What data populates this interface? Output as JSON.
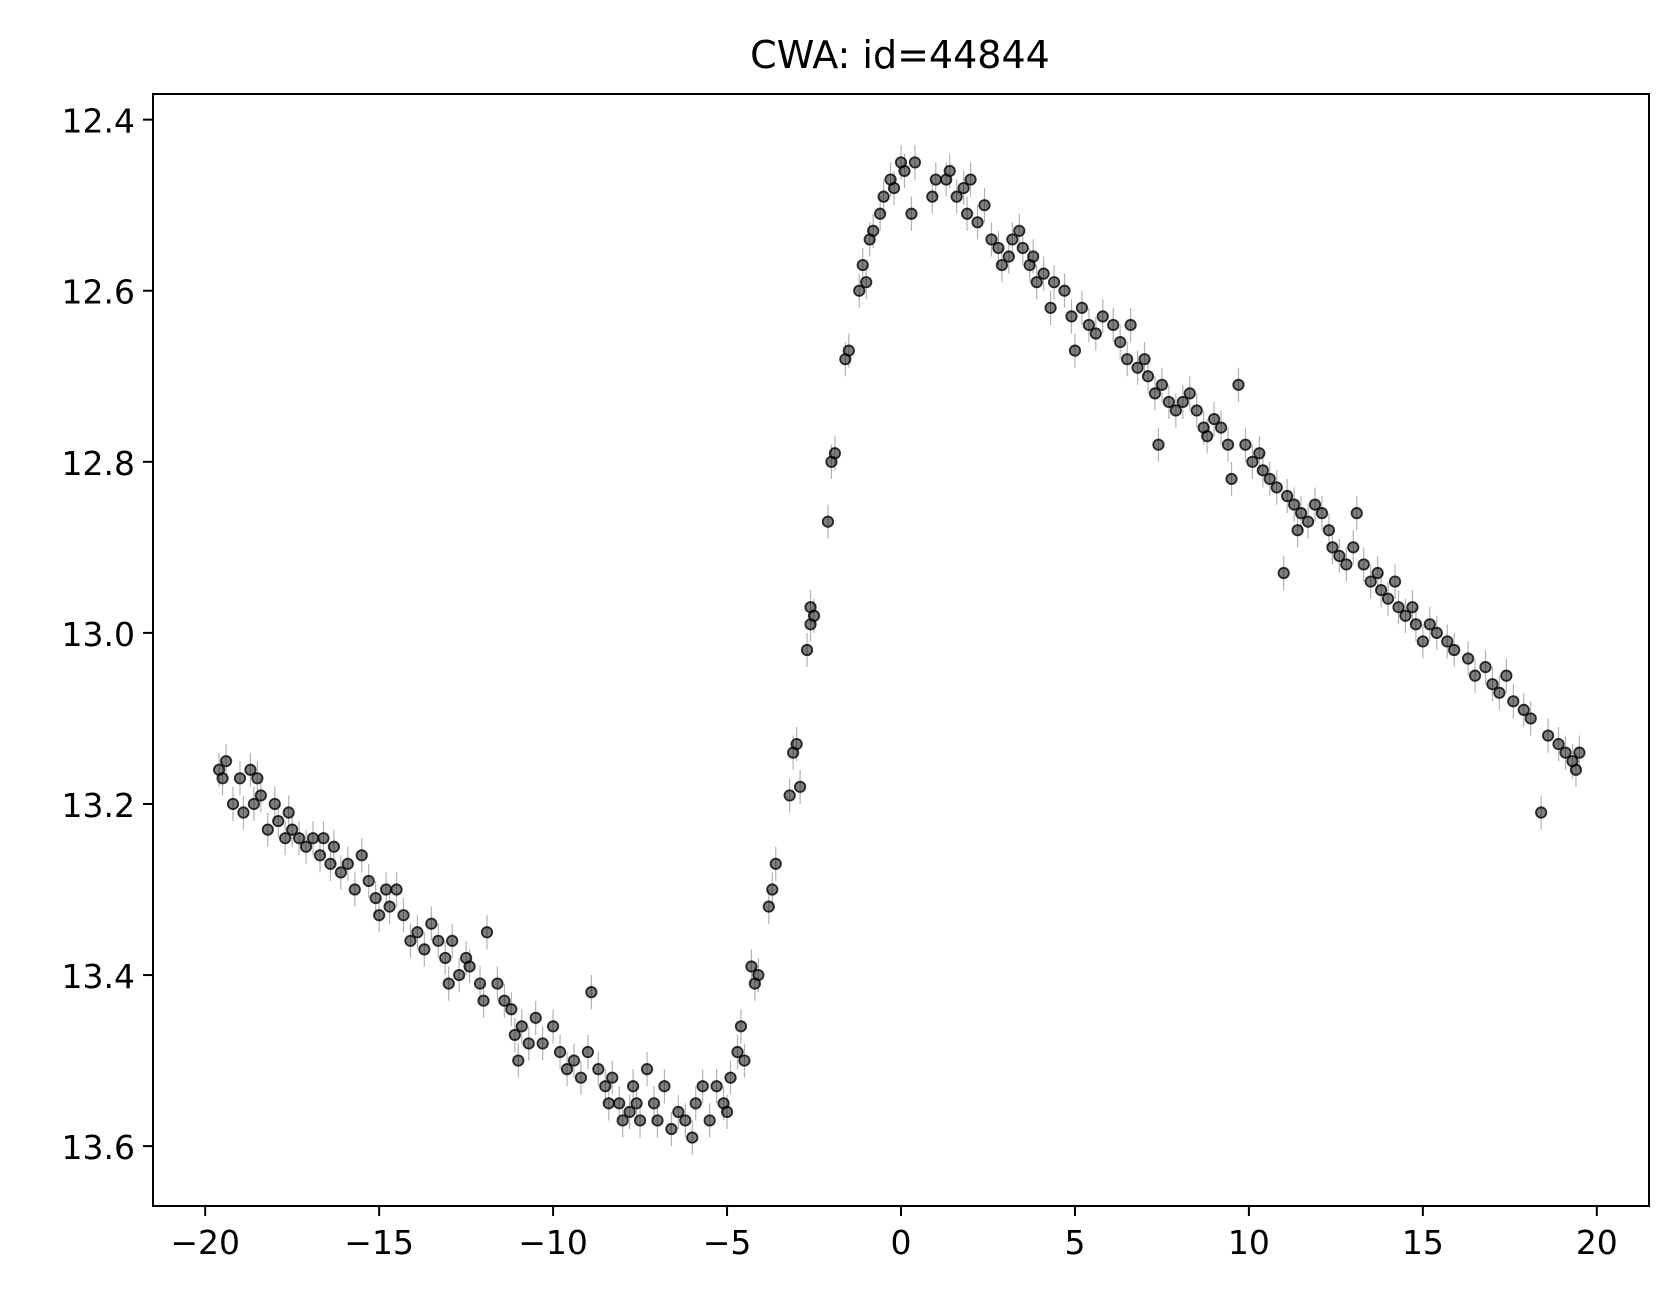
{
  "chart_data": {
    "type": "scatter",
    "title": "CWA: id=44844",
    "xlabel": "",
    "ylabel": "",
    "xlim": [
      -21.5,
      21.5
    ],
    "ylim": [
      13.67,
      12.37
    ],
    "y_inverted": true,
    "grid": false,
    "legend": "none",
    "x_ticks": [
      {
        "value": -20,
        "label": "−20"
      },
      {
        "value": -15,
        "label": "−15"
      },
      {
        "value": -10,
        "label": "−10"
      },
      {
        "value": -5,
        "label": "−5"
      },
      {
        "value": 0,
        "label": "0"
      },
      {
        "value": 5,
        "label": "5"
      },
      {
        "value": 10,
        "label": "10"
      },
      {
        "value": 15,
        "label": "15"
      },
      {
        "value": 20,
        "label": "20"
      }
    ],
    "y_ticks": [
      {
        "value": 12.4,
        "label": "12.4"
      },
      {
        "value": 12.6,
        "label": "12.6"
      },
      {
        "value": 12.8,
        "label": "12.8"
      },
      {
        "value": 13.0,
        "label": "13.0"
      },
      {
        "value": 13.2,
        "label": "13.2"
      },
      {
        "value": 13.4,
        "label": "13.4"
      },
      {
        "value": 13.6,
        "label": "13.6"
      }
    ],
    "marker_color": "#000000",
    "marker_alpha": 0.5,
    "error_bar_color": "#808080",
    "error": 0.02,
    "points": [
      [
        -19.6,
        13.16
      ],
      [
        -19.5,
        13.17
      ],
      [
        -19.4,
        13.15
      ],
      [
        -19.2,
        13.2
      ],
      [
        -19.0,
        13.17
      ],
      [
        -18.9,
        13.21
      ],
      [
        -18.7,
        13.16
      ],
      [
        -18.6,
        13.2
      ],
      [
        -18.5,
        13.17
      ],
      [
        -18.4,
        13.19
      ],
      [
        -18.2,
        13.23
      ],
      [
        -18.0,
        13.2
      ],
      [
        -17.9,
        13.22
      ],
      [
        -17.7,
        13.24
      ],
      [
        -17.6,
        13.21
      ],
      [
        -17.5,
        13.23
      ],
      [
        -17.3,
        13.24
      ],
      [
        -17.1,
        13.25
      ],
      [
        -16.9,
        13.24
      ],
      [
        -16.7,
        13.26
      ],
      [
        -16.6,
        13.24
      ],
      [
        -16.4,
        13.27
      ],
      [
        -16.3,
        13.25
      ],
      [
        -16.1,
        13.28
      ],
      [
        -15.9,
        13.27
      ],
      [
        -15.7,
        13.3
      ],
      [
        -15.5,
        13.26
      ],
      [
        -15.3,
        13.29
      ],
      [
        -15.1,
        13.31
      ],
      [
        -15.0,
        13.33
      ],
      [
        -14.8,
        13.3
      ],
      [
        -14.7,
        13.32
      ],
      [
        -14.5,
        13.3
      ],
      [
        -14.3,
        13.33
      ],
      [
        -14.1,
        13.36
      ],
      [
        -13.9,
        13.35
      ],
      [
        -13.7,
        13.37
      ],
      [
        -13.5,
        13.34
      ],
      [
        -13.3,
        13.36
      ],
      [
        -13.1,
        13.38
      ],
      [
        -13.0,
        13.41
      ],
      [
        -12.9,
        13.36
      ],
      [
        -12.7,
        13.4
      ],
      [
        -12.5,
        13.38
      ],
      [
        -12.4,
        13.39
      ],
      [
        -12.1,
        13.41
      ],
      [
        -12.0,
        13.43
      ],
      [
        -11.9,
        13.35
      ],
      [
        -11.6,
        13.41
      ],
      [
        -11.4,
        13.43
      ],
      [
        -11.2,
        13.44
      ],
      [
        -11.1,
        13.47
      ],
      [
        -11.0,
        13.5
      ],
      [
        -10.9,
        13.46
      ],
      [
        -10.7,
        13.48
      ],
      [
        -10.5,
        13.45
      ],
      [
        -10.3,
        13.48
      ],
      [
        -10.0,
        13.46
      ],
      [
        -9.8,
        13.49
      ],
      [
        -9.6,
        13.51
      ],
      [
        -9.4,
        13.5
      ],
      [
        -9.2,
        13.52
      ],
      [
        -9.0,
        13.49
      ],
      [
        -8.9,
        13.42
      ],
      [
        -8.7,
        13.51
      ],
      [
        -8.5,
        13.53
      ],
      [
        -8.4,
        13.55
      ],
      [
        -8.3,
        13.52
      ],
      [
        -8.1,
        13.55
      ],
      [
        -8.0,
        13.57
      ],
      [
        -7.8,
        13.56
      ],
      [
        -7.7,
        13.53
      ],
      [
        -7.6,
        13.55
      ],
      [
        -7.5,
        13.57
      ],
      [
        -7.3,
        13.51
      ],
      [
        -7.1,
        13.55
      ],
      [
        -7.0,
        13.57
      ],
      [
        -6.8,
        13.53
      ],
      [
        -6.6,
        13.58
      ],
      [
        -6.4,
        13.56
      ],
      [
        -6.2,
        13.57
      ],
      [
        -6.0,
        13.59
      ],
      [
        -5.9,
        13.55
      ],
      [
        -5.7,
        13.53
      ],
      [
        -5.5,
        13.57
      ],
      [
        -5.3,
        13.53
      ],
      [
        -5.1,
        13.55
      ],
      [
        -5.0,
        13.56
      ],
      [
        -4.9,
        13.52
      ],
      [
        -4.7,
        13.49
      ],
      [
        -4.6,
        13.46
      ],
      [
        -4.5,
        13.5
      ],
      [
        -4.3,
        13.39
      ],
      [
        -4.2,
        13.41
      ],
      [
        -4.1,
        13.4
      ],
      [
        -3.8,
        13.32
      ],
      [
        -3.7,
        13.3
      ],
      [
        -3.6,
        13.27
      ],
      [
        -3.2,
        13.19
      ],
      [
        -3.1,
        13.14
      ],
      [
        -3.0,
        13.13
      ],
      [
        -2.9,
        13.18
      ],
      [
        -2.7,
        13.02
      ],
      [
        -2.6,
        12.99
      ],
      [
        -2.5,
        12.98
      ],
      [
        -2.6,
        12.97
      ],
      [
        -2.1,
        12.87
      ],
      [
        -2.0,
        12.8
      ],
      [
        -1.9,
        12.79
      ],
      [
        -1.6,
        12.68
      ],
      [
        -1.5,
        12.67
      ],
      [
        -1.2,
        12.6
      ],
      [
        -1.1,
        12.57
      ],
      [
        -1.0,
        12.59
      ],
      [
        -0.9,
        12.54
      ],
      [
        -0.8,
        12.53
      ],
      [
        -0.6,
        12.51
      ],
      [
        -0.5,
        12.49
      ],
      [
        -0.3,
        12.47
      ],
      [
        -0.2,
        12.48
      ],
      [
        0.0,
        12.45
      ],
      [
        0.1,
        12.46
      ],
      [
        0.3,
        12.51
      ],
      [
        0.4,
        12.45
      ],
      [
        0.9,
        12.49
      ],
      [
        1.0,
        12.47
      ],
      [
        1.3,
        12.47
      ],
      [
        1.4,
        12.46
      ],
      [
        1.6,
        12.49
      ],
      [
        1.8,
        12.48
      ],
      [
        1.9,
        12.51
      ],
      [
        2.0,
        12.47
      ],
      [
        2.2,
        12.52
      ],
      [
        2.4,
        12.5
      ],
      [
        2.6,
        12.54
      ],
      [
        2.8,
        12.55
      ],
      [
        2.9,
        12.57
      ],
      [
        3.1,
        12.56
      ],
      [
        3.2,
        12.54
      ],
      [
        3.4,
        12.53
      ],
      [
        3.5,
        12.55
      ],
      [
        3.7,
        12.57
      ],
      [
        3.8,
        12.56
      ],
      [
        3.9,
        12.59
      ],
      [
        4.1,
        12.58
      ],
      [
        4.3,
        12.62
      ],
      [
        4.4,
        12.59
      ],
      [
        4.7,
        12.6
      ],
      [
        4.9,
        12.63
      ],
      [
        5.0,
        12.67
      ],
      [
        5.2,
        12.62
      ],
      [
        5.4,
        12.64
      ],
      [
        5.6,
        12.65
      ],
      [
        5.8,
        12.63
      ],
      [
        6.1,
        12.64
      ],
      [
        6.3,
        12.66
      ],
      [
        6.5,
        12.68
      ],
      [
        6.6,
        12.64
      ],
      [
        6.8,
        12.69
      ],
      [
        7.0,
        12.68
      ],
      [
        7.1,
        12.7
      ],
      [
        7.3,
        12.72
      ],
      [
        7.4,
        12.78
      ],
      [
        7.5,
        12.71
      ],
      [
        7.7,
        12.73
      ],
      [
        7.9,
        12.74
      ],
      [
        8.1,
        12.73
      ],
      [
        8.3,
        12.72
      ],
      [
        8.5,
        12.74
      ],
      [
        8.7,
        12.76
      ],
      [
        8.8,
        12.77
      ],
      [
        9.0,
        12.75
      ],
      [
        9.2,
        12.76
      ],
      [
        9.4,
        12.78
      ],
      [
        9.5,
        12.82
      ],
      [
        9.7,
        12.71
      ],
      [
        9.9,
        12.78
      ],
      [
        10.1,
        12.8
      ],
      [
        10.3,
        12.79
      ],
      [
        10.4,
        12.81
      ],
      [
        10.6,
        12.82
      ],
      [
        10.8,
        12.83
      ],
      [
        11.0,
        12.93
      ],
      [
        11.1,
        12.84
      ],
      [
        11.3,
        12.85
      ],
      [
        11.4,
        12.88
      ],
      [
        11.5,
        12.86
      ],
      [
        11.7,
        12.87
      ],
      [
        11.9,
        12.85
      ],
      [
        12.1,
        12.86
      ],
      [
        12.3,
        12.88
      ],
      [
        12.4,
        12.9
      ],
      [
        12.6,
        12.91
      ],
      [
        12.8,
        12.92
      ],
      [
        13.0,
        12.9
      ],
      [
        13.1,
        12.86
      ],
      [
        13.3,
        12.92
      ],
      [
        13.5,
        12.94
      ],
      [
        13.7,
        12.93
      ],
      [
        13.8,
        12.95
      ],
      [
        14.0,
        12.96
      ],
      [
        14.2,
        12.94
      ],
      [
        14.3,
        12.97
      ],
      [
        14.5,
        12.98
      ],
      [
        14.7,
        12.97
      ],
      [
        14.8,
        12.99
      ],
      [
        15.0,
        13.01
      ],
      [
        15.2,
        12.99
      ],
      [
        15.4,
        13.0
      ],
      [
        15.7,
        13.01
      ],
      [
        15.9,
        13.02
      ],
      [
        16.3,
        13.03
      ],
      [
        16.5,
        13.05
      ],
      [
        16.8,
        13.04
      ],
      [
        17.0,
        13.06
      ],
      [
        17.2,
        13.07
      ],
      [
        17.4,
        13.05
      ],
      [
        17.6,
        13.08
      ],
      [
        17.9,
        13.09
      ],
      [
        18.1,
        13.1
      ],
      [
        18.4,
        13.21
      ],
      [
        18.6,
        13.12
      ],
      [
        18.9,
        13.13
      ],
      [
        19.1,
        13.14
      ],
      [
        19.3,
        13.15
      ],
      [
        19.4,
        13.16
      ],
      [
        19.5,
        13.14
      ]
    ]
  }
}
